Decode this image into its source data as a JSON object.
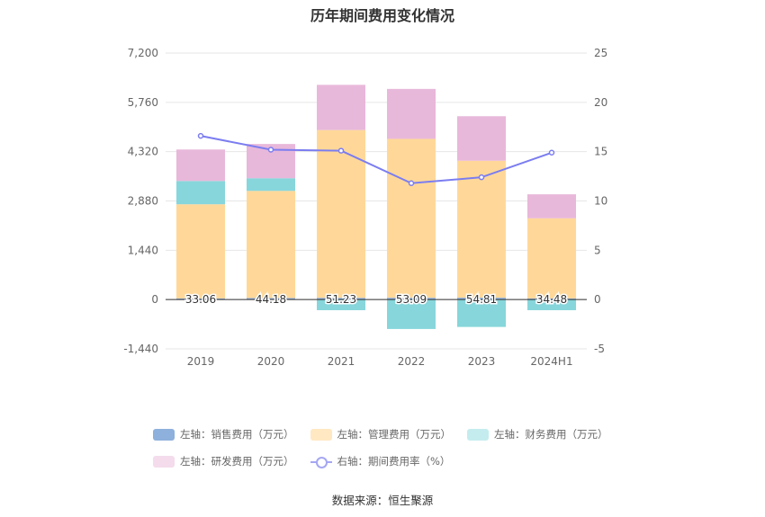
{
  "title": "历年期间费用变化情况",
  "source": "数据来源：恒生聚源",
  "chart_data": {
    "type": "bar",
    "stacked": true,
    "categories": [
      "2019",
      "2020",
      "2021",
      "2022",
      "2023",
      "2024H1"
    ],
    "left_axis": {
      "ticks": [
        "7,200",
        "5,760",
        "4,320",
        "2,880",
        "1,440",
        "0",
        "-1,440"
      ],
      "ylim": [
        -1440,
        7200
      ]
    },
    "right_axis": {
      "ticks": [
        "25",
        "20",
        "15",
        "10",
        "5",
        "0",
        "-5"
      ],
      "ylim": [
        -5,
        25
      ]
    },
    "series": [
      {
        "name": "左轴：销售费用（万元）",
        "color": "#8eb0dc",
        "legend_color": "#8eb0dc",
        "values": [
          33.06,
          44.18,
          51.23,
          53.09,
          54.81,
          34.48
        ],
        "labels": [
          "33.06",
          "44.18",
          "51.23",
          "53.09",
          "54.81",
          "34.48"
        ]
      },
      {
        "name": "左轴：管理费用（万元）",
        "color": "#ffd899",
        "legend_color": "#ffe8c2",
        "values": [
          2750,
          3130,
          4900,
          4640,
          4000,
          2340
        ]
      },
      {
        "name": "左轴：财务费用（万元）",
        "color": "#87d6db",
        "legend_color": "#c4ecee",
        "values": [
          680,
          370,
          -310,
          -860,
          -800,
          -310
        ]
      },
      {
        "name": "左轴：研发费用（万元）",
        "color": "#e8b8da",
        "legend_color": "#f4dcec",
        "values": [
          920,
          1000,
          1320,
          1460,
          1300,
          700
        ]
      }
    ],
    "line": {
      "name": "右轴：期间费用率（%）",
      "color": "#7b7df0",
      "values": [
        16.6,
        15.2,
        15.1,
        11.8,
        12.4,
        14.9
      ]
    },
    "grid": true,
    "legend_position": "bottom"
  }
}
